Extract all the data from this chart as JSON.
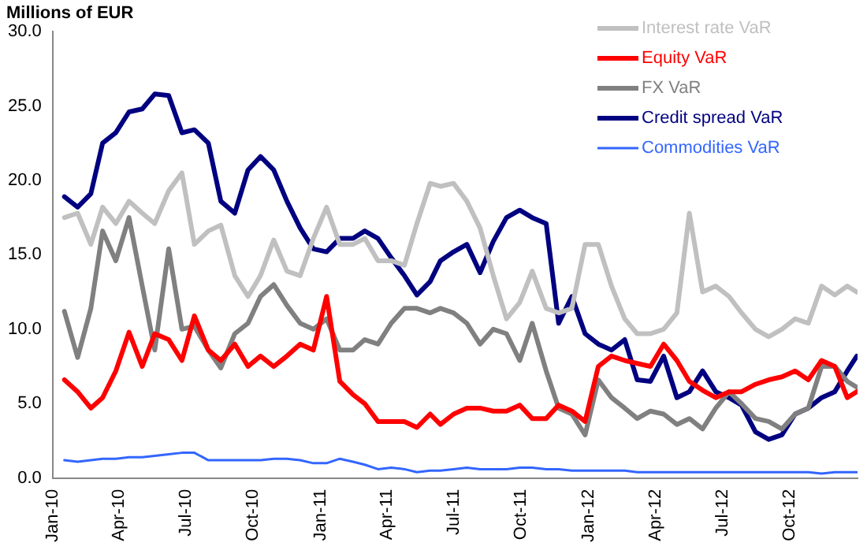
{
  "chart_data": {
    "type": "line",
    "ylabel": "Millions of EUR",
    "x": [
      "2010-01-17",
      "2010-02-04",
      "2010-02-22",
      "2010-03-10",
      "2010-03-28",
      "2010-04-15",
      "2010-05-03",
      "2010-05-20",
      "2010-06-08",
      "2010-06-26",
      "2010-07-13",
      "2010-08-01",
      "2010-08-18",
      "2010-09-06",
      "2010-09-24",
      "2010-10-11",
      "2010-10-29",
      "2010-11-16",
      "2010-12-04",
      "2010-12-22",
      "2011-01-09",
      "2011-01-27",
      "2011-02-14",
      "2011-03-02",
      "2011-03-20",
      "2011-04-07",
      "2011-04-25",
      "2011-05-12",
      "2011-05-30",
      "2011-06-13",
      "2011-07-01",
      "2011-07-19",
      "2011-08-06",
      "2011-08-24",
      "2011-09-11",
      "2011-09-29",
      "2011-10-16",
      "2011-11-04",
      "2011-11-21",
      "2011-12-09",
      "2011-12-27",
      "2012-01-14",
      "2012-02-01",
      "2012-02-19",
      "2012-03-07",
      "2012-03-25",
      "2012-04-12",
      "2012-04-30",
      "2012-05-17",
      "2012-06-04",
      "2012-06-22",
      "2012-07-10",
      "2012-07-27",
      "2012-08-15",
      "2012-09-02",
      "2012-09-20",
      "2012-10-08",
      "2012-10-26",
      "2012-11-13",
      "2012-12-01",
      "2012-12-18",
      "2012-12-31"
    ],
    "series": [
      {
        "name": "Interest rate VaR",
        "color": "#c0c0c0",
        "values": [
          17.5,
          17.8,
          15.7,
          18.2,
          17.1,
          18.6,
          17.8,
          17.1,
          19.3,
          20.5,
          15.7,
          16.6,
          17.0,
          13.6,
          12.2,
          13.6,
          16.0,
          13.9,
          13.6,
          16.1,
          18.2,
          15.7,
          15.7,
          16.1,
          14.6,
          14.6,
          14.3,
          17.1,
          19.8,
          19.6,
          19.8,
          18.6,
          16.8,
          13.6,
          10.7,
          11.8,
          13.9,
          11.4,
          11.1,
          11.4,
          15.7,
          15.7,
          12.9,
          10.7,
          9.7,
          9.7,
          10.0,
          11.1,
          17.8,
          12.5,
          12.9,
          12.2,
          11.1,
          10.0,
          9.5,
          10.0,
          10.7,
          10.4,
          12.9,
          12.3,
          12.9,
          12.5
        ]
      },
      {
        "name": "Equity VaR",
        "color": "#ff0000",
        "values": [
          6.6,
          5.8,
          4.7,
          5.4,
          7.2,
          9.8,
          7.5,
          9.7,
          9.3,
          7.9,
          10.9,
          8.6,
          7.9,
          9.0,
          7.5,
          8.2,
          7.5,
          8.2,
          9.0,
          8.6,
          12.2,
          6.5,
          5.6,
          5.0,
          3.8,
          3.8,
          3.8,
          3.4,
          4.3,
          3.6,
          4.3,
          4.7,
          4.7,
          4.5,
          4.5,
          4.9,
          4.0,
          4.0,
          4.9,
          4.5,
          3.8,
          7.5,
          8.2,
          7.9,
          7.7,
          7.5,
          9.0,
          7.9,
          6.5,
          5.9,
          5.4,
          5.8,
          5.8,
          6.3,
          6.6,
          6.8,
          7.2,
          6.6,
          7.9,
          7.5,
          5.4,
          5.8
        ]
      },
      {
        "name": "FX VaR",
        "color": "#808080",
        "values": [
          11.2,
          8.1,
          11.4,
          16.6,
          14.6,
          17.5,
          12.9,
          8.6,
          15.4,
          10.0,
          10.2,
          8.6,
          7.4,
          9.7,
          10.4,
          12.2,
          13.0,
          11.6,
          10.4,
          10.0,
          10.7,
          8.6,
          8.6,
          9.3,
          9.0,
          10.4,
          11.4,
          11.4,
          11.1,
          11.4,
          11.1,
          10.4,
          9.0,
          10.0,
          9.7,
          7.9,
          10.4,
          7.2,
          4.7,
          4.3,
          2.9,
          6.6,
          5.4,
          4.7,
          4.0,
          4.5,
          4.3,
          3.6,
          4.0,
          3.3,
          4.7,
          5.8,
          5.0,
          4.0,
          3.8,
          3.3,
          4.3,
          4.7,
          7.5,
          7.5,
          6.5,
          6.1
        ]
      },
      {
        "name": "Credit spread VaR",
        "color": "#000080",
        "values": [
          18.9,
          18.2,
          19.1,
          22.5,
          23.2,
          24.6,
          24.8,
          25.8,
          25.7,
          23.2,
          23.4,
          22.5,
          18.6,
          17.8,
          20.7,
          21.6,
          20.7,
          18.6,
          16.8,
          15.4,
          15.2,
          16.1,
          16.1,
          16.6,
          16.1,
          14.8,
          13.6,
          12.3,
          13.2,
          14.6,
          15.2,
          15.7,
          13.8,
          15.9,
          17.5,
          18.0,
          17.5,
          17.1,
          10.4,
          12.2,
          9.7,
          9.0,
          8.6,
          9.3,
          6.6,
          6.5,
          8.2,
          5.4,
          5.8,
          7.2,
          5.8,
          5.4,
          4.9,
          3.1,
          2.6,
          2.9,
          4.3,
          4.7,
          5.4,
          5.8,
          7.2,
          8.2
        ]
      },
      {
        "name": "Commodities VaR",
        "color": "#3366ff",
        "values": [
          1.2,
          1.1,
          1.2,
          1.3,
          1.3,
          1.4,
          1.4,
          1.5,
          1.6,
          1.7,
          1.7,
          1.2,
          1.2,
          1.2,
          1.2,
          1.2,
          1.3,
          1.3,
          1.2,
          1.0,
          1.0,
          1.3,
          1.1,
          0.9,
          0.6,
          0.7,
          0.6,
          0.4,
          0.5,
          0.5,
          0.6,
          0.7,
          0.6,
          0.6,
          0.6,
          0.7,
          0.7,
          0.6,
          0.6,
          0.5,
          0.5,
          0.5,
          0.5,
          0.5,
          0.4,
          0.4,
          0.4,
          0.4,
          0.4,
          0.4,
          0.4,
          0.4,
          0.4,
          0.4,
          0.4,
          0.4,
          0.4,
          0.4,
          0.3,
          0.4,
          0.4,
          0.4
        ]
      }
    ],
    "ylim": [
      0,
      30
    ],
    "yticks": [
      {
        "value": 0,
        "label": "0.0"
      },
      {
        "value": 5,
        "label": "5.0"
      },
      {
        "value": 10,
        "label": "10.0"
      },
      {
        "value": 15,
        "label": "15.0"
      },
      {
        "value": 20,
        "label": "20.0"
      },
      {
        "value": 25,
        "label": "25.0"
      },
      {
        "value": 30,
        "label": "30.0"
      }
    ],
    "xlim": [
      "2010-01",
      "2013-01"
    ],
    "xticks": [
      {
        "value": "2010-01",
        "label": "Jan-10"
      },
      {
        "value": "2010-04",
        "label": "Apr-10"
      },
      {
        "value": "2010-07",
        "label": "Jul-10"
      },
      {
        "value": "2010-10",
        "label": "Oct-10"
      },
      {
        "value": "2011-01",
        "label": "Jan-11"
      },
      {
        "value": "2011-04",
        "label": "Apr-11"
      },
      {
        "value": "2011-07",
        "label": "Jul-11"
      },
      {
        "value": "2011-10",
        "label": "Oct-11"
      },
      {
        "value": "2012-01",
        "label": "Jan-12"
      },
      {
        "value": "2012-04",
        "label": "Apr-12"
      },
      {
        "value": "2012-07",
        "label": "Jul-12"
      },
      {
        "value": "2012-10",
        "label": "Oct-12"
      }
    ],
    "grid": false,
    "legend": "top right",
    "marker": "none",
    "line_style": "solid"
  }
}
